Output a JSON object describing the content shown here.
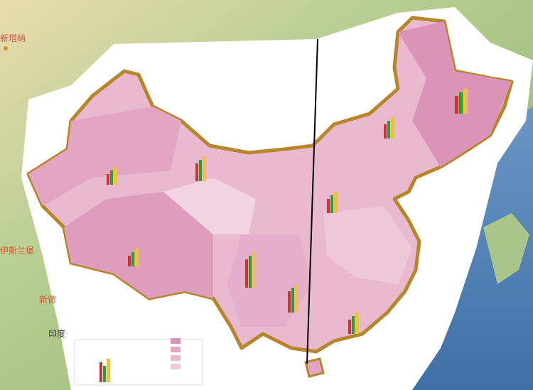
{
  "map": {
    "places": [
      {
        "label": "新塔纳"
      },
      {
        "label": "伊斯兰堡"
      },
      {
        "label": "新德"
      },
      {
        "label": "印度"
      }
    ]
  }
}
